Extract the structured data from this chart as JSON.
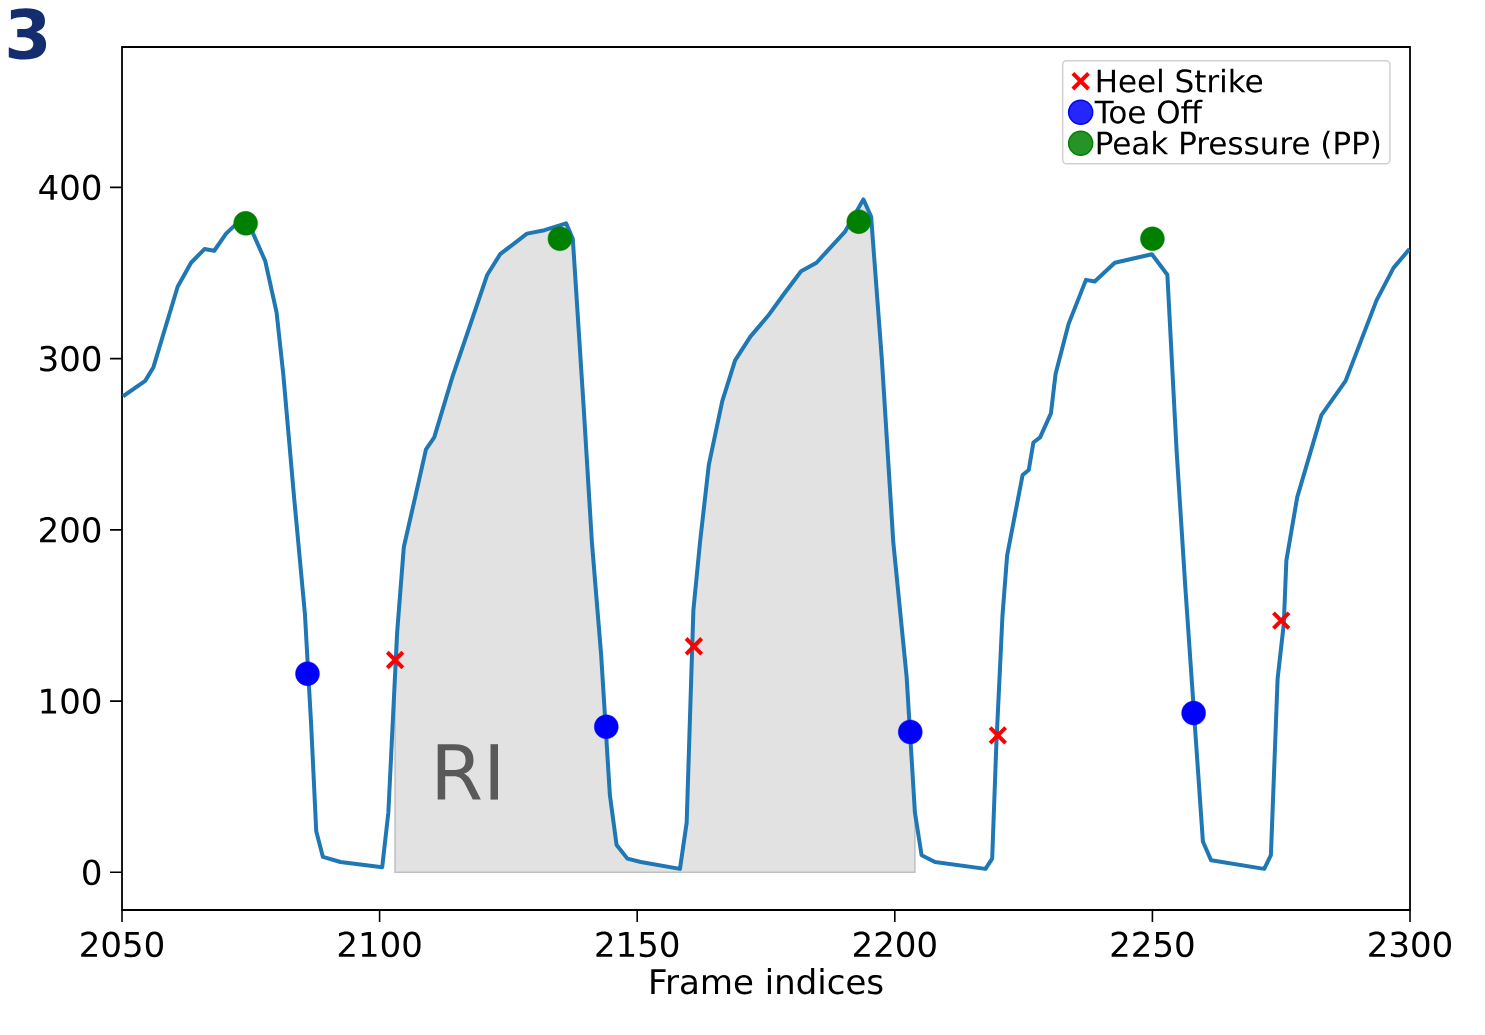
{
  "chart_data": {
    "type": "line",
    "xlabel": "Frame indices",
    "annotations": [
      "3"
    ],
    "xlim": [
      2050,
      2300
    ],
    "ylim": [
      -22,
      482
    ],
    "xticks": [
      2050,
      2100,
      2150,
      2200,
      2250,
      2300
    ],
    "yticks": [
      0,
      100,
      200,
      300,
      400
    ],
    "legend": "top right",
    "series": [
      {
        "type": "area",
        "name": "RI",
        "color": "#e2e2e2",
        "x": [
          2103,
          2103.4,
          2104.7,
          2106.9,
          2109,
          2110.6,
          2114.1,
          2117.5,
          2120.9,
          2123.4,
          2128.6,
          2132,
          2134.9,
          2136.2,
          2137.5,
          2139.6,
          2141.2,
          2143,
          2144.7,
          2146,
          2148.1,
          2150.7,
          2158.3,
          2159.6,
          2160.9,
          2162.2,
          2163.9,
          2166.5,
          2169,
          2172,
          2175.4,
          2178.3,
          2181.8,
          2184.8,
          2190.3,
          2192.8,
          2193.9,
          2195.4,
          2197.5,
          2199.7,
          2202.3,
          2203.9
        ],
        "values": [
          120,
          140,
          190,
          219,
          247,
          254,
          289,
          319,
          349,
          361,
          373,
          375,
          null,
          379,
          370,
          272,
          193,
          127,
          45,
          16,
          8,
          6,
          2,
          29,
          153,
          193,
          238,
          275,
          299,
          313,
          325,
          337,
          351,
          356,
          374,
          null,
          393,
          383,
          299,
          193,
          114,
          35
        ]
      },
      {
        "color": "#1f77b4",
        "x": [
          2050.2,
          2054.5,
          2056.1,
          2060.8,
          2063.4,
          2066,
          2067.9,
          2070.2,
          2072.3,
          2075.3,
          2077.8,
          2080,
          2081.3,
          2083.4,
          2085.5,
          2086.7,
          2087.7,
          2089,
          2092.4,
          2100.5,
          2101.7,
          2103.4,
          2104.7,
          2106.9,
          2109,
          2110.6,
          2114.1,
          2117.5,
          2120.9,
          2123.4,
          2128.6,
          2132,
          2134.9,
          2136.2,
          2137.5,
          2139.6,
          2141.2,
          2143,
          2144.7,
          2146,
          2148.1,
          2150.7,
          2158.3,
          2159.6,
          2160.9,
          2162.2,
          2163.9,
          2166.5,
          2169,
          2172,
          2175.4,
          2178.3,
          2181.8,
          2184.8,
          2190.3,
          2192.8,
          2193.9,
          2195.4,
          2197.5,
          2199.7,
          2202.3,
          2203.9,
          2205.2,
          2207.8,
          2217.6,
          2218.9,
          2219.7,
          2220.9,
          2221.8,
          2224.8,
          2226,
          2226.9,
          2228.2,
          2230.3,
          2231.2,
          2233.7,
          2237.1,
          2238.8,
          2242.7,
          2249.9,
          2251.7,
          2252.9,
          2254.7,
          2256.4,
          2258.1,
          2259.8,
          2261.4,
          2271.7,
          2273,
          2274.3,
          2275.5,
          2276,
          2278.1,
          2282.8,
          2287.5,
          2293.5,
          2296.8,
          2299.9
        ],
        "values": [
          278,
          287,
          295,
          342,
          356,
          364,
          363,
          373,
          379,
          374,
          357,
          327,
          291,
          219,
          151,
          87,
          24,
          9,
          6,
          3,
          35,
          140,
          190,
          219,
          247,
          254,
          289,
          319,
          349,
          361,
          373,
          375,
          null,
          379,
          370,
          272,
          193,
          127,
          45,
          16,
          8,
          6,
          2,
          29,
          153,
          193,
          238,
          275,
          299,
          313,
          325,
          337,
          351,
          356,
          374,
          null,
          393,
          383,
          299,
          193,
          114,
          35,
          10,
          6,
          2,
          8,
          74,
          150,
          185,
          232,
          235,
          251,
          254,
          268,
          291,
          320,
          346,
          345,
          356,
          361,
          null,
          349,
          246,
          166,
          null,
          18,
          7,
          2,
          10,
          113,
          145,
          182,
          219,
          267,
          287,
          334,
          353,
          364
        ]
      },
      {
        "type": "scatter",
        "name": "Heel Strike",
        "color": "#ff0000",
        "marker": "cross",
        "x": [
          2103,
          2161,
          2220,
          2275
        ],
        "values": [
          124,
          132,
          80,
          147
        ]
      },
      {
        "type": "scatter",
        "name": "Toe Off",
        "color": "#0000ff",
        "marker": "circle",
        "x": [
          2086,
          2144,
          2203,
          2258
        ],
        "values": [
          116,
          85,
          82,
          93
        ]
      },
      {
        "type": "scatter",
        "name": "Peak Pressure (PP)",
        "color": "#008000",
        "marker": "circle",
        "x": [
          2074,
          2135,
          2193,
          2250
        ],
        "values": [
          379,
          370,
          380,
          370
        ]
      }
    ]
  }
}
